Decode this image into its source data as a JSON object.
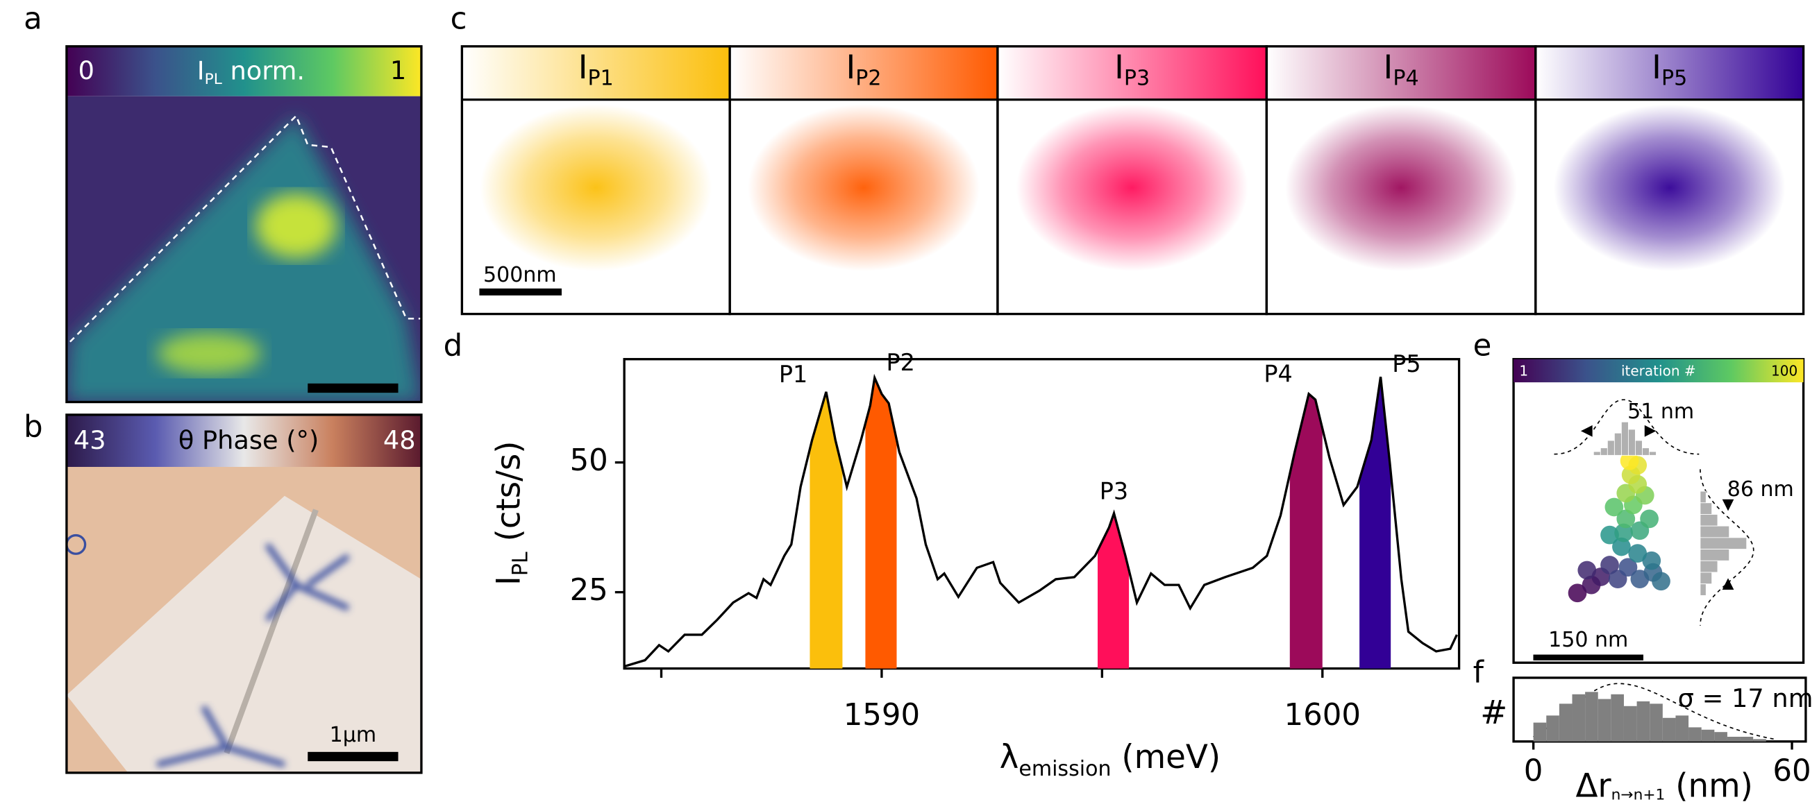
{
  "panel_letters": [
    "a",
    "b",
    "c",
    "d",
    "e",
    "f"
  ],
  "pl_map": {
    "colorbar_min": "0",
    "label": {
      "main": "I",
      "sub": "PL",
      "rest": " norm."
    },
    "colorbar_max": "1"
  },
  "phase_map": {
    "colorbar_min": "43",
    "label": "θ Phase (°)",
    "colorbar_max": "48",
    "scale_bar": "1μm"
  },
  "peak_maps": {
    "symbol": "I",
    "scale_bar": "500nm"
  },
  "chart_data": [
    {
      "type": "line",
      "y_label": {
        "main": "I",
        "sub": "PL",
        "rest": " (cts/s)"
      },
      "x_label": {
        "main": "λ",
        "sub": "emission",
        "rest": " (meV)"
      },
      "x": [
        1584.16,
        1584.63,
        1584.95,
        1585.16,
        1585.53,
        1585.92,
        1586.27,
        1586.63,
        1586.98,
        1587.16,
        1587.32,
        1587.48,
        1587.79,
        1587.95,
        1588.16,
        1588.42,
        1588.74,
        1588.95,
        1589.21,
        1589.53,
        1589.74,
        1589.84,
        1590.0,
        1590.16,
        1590.4,
        1590.79,
        1591.0,
        1591.27,
        1591.42,
        1591.74,
        1592.16,
        1592.53,
        1592.69,
        1593.11,
        1593.58,
        1593.95,
        1594.37,
        1594.84,
        1595.16,
        1595.27,
        1595.53,
        1595.79,
        1596.11,
        1596.42,
        1596.74,
        1597.0,
        1597.32,
        1597.79,
        1598.42,
        1598.74,
        1599.05,
        1599.37,
        1599.69,
        1599.84,
        1600.16,
        1600.48,
        1600.79,
        1601.11,
        1601.32,
        1601.53,
        1601.79,
        1601.95,
        1602.27,
        1602.58,
        1602.9,
        1603.05
      ],
      "values": [
        10.7,
        11.9,
        14.8,
        13.6,
        16.8,
        16.8,
        19.7,
        23.0,
        24.8,
        23.9,
        27.5,
        26.4,
        32.0,
        34.2,
        45.3,
        54.3,
        63.6,
        54.3,
        45.3,
        54.3,
        61.0,
        66.3,
        63.2,
        61.4,
        52.0,
        43.1,
        34.2,
        27.5,
        28.6,
        24.1,
        29.7,
        30.8,
        26.8,
        23.0,
        25.3,
        27.5,
        27.9,
        32.0,
        37.5,
        40.2,
        32.0,
        23.0,
        28.6,
        26.4,
        26.4,
        21.9,
        26.4,
        27.9,
        29.7,
        32.0,
        39.8,
        52.0,
        63.2,
        62.1,
        50.9,
        41.8,
        45.3,
        54.3,
        66.5,
        49.8,
        27.5,
        17.4,
        15.2,
        13.6,
        14.1,
        16.8
      ],
      "color": "#000000",
      "xlim": [
        1584.16,
        1603.1
      ],
      "ylim": [
        10.3,
        69.9
      ],
      "xticks": [
        1590,
        1600
      ],
      "minor_xticks": [
        1585,
        1595
      ],
      "yticks": [
        25,
        50
      ],
      "peaks": [
        {
          "name": "P1",
          "range": [
            1588.37,
            1589.11
          ],
          "color": "#fbbf0c"
        },
        {
          "name": "P2",
          "range": [
            1589.63,
            1590.34
          ],
          "color": "#ff5a00"
        },
        {
          "name": "P3",
          "range": [
            1594.9,
            1595.61
          ],
          "color": "#ff0f5a"
        },
        {
          "name": "P4",
          "range": [
            1599.26,
            1600.0
          ],
          "color": "#9c0a5a"
        },
        {
          "name": "P5",
          "range": [
            1600.84,
            1601.55
          ],
          "color": "#320096"
        }
      ]
    },
    {
      "type": "scatter",
      "colorbar": {
        "min": "1",
        "label": "iteration #",
        "max": "100"
      },
      "colormap": "viridis",
      "x": [
        87,
        106,
        119,
        100,
        131,
        142,
        156,
        172,
        190,
        201,
        188,
        169,
        147,
        131,
        150,
        172,
        185,
        153,
        137,
        163,
        179,
        153,
        169,
        160,
        169,
        158
      ],
      "values": [
        95,
        106,
        117,
        126,
        133,
        114,
        130,
        114,
        123,
        111,
        139,
        149,
        158,
        174,
        177,
        180,
        196,
        196,
        212,
        215,
        228,
        231,
        243,
        256,
        269,
        275
      ],
      "xlim": [
        0,
        395
      ],
      "ylim": [
        0,
        382
      ],
      "scale_bar": {
        "length": 150,
        "label": "150 nm"
      },
      "x_histogram": {
        "counts": [
          1,
          2,
          4,
          6,
          9,
          7,
          4,
          2,
          1
        ],
        "label": "51 nm"
      },
      "y_histogram": {
        "counts": [
          1,
          2,
          3,
          5,
          8,
          5,
          3,
          2,
          1
        ],
        "label": "86 nm"
      }
    },
    {
      "type": "histogram",
      "x_label": {
        "main": "Δr",
        "sub": "n→n+1",
        "rest": " (nm)"
      },
      "y_label": "#",
      "bins": [
        0,
        3,
        6,
        9,
        12,
        15,
        18,
        21,
        24,
        27,
        30,
        33,
        36,
        39,
        42,
        45,
        48,
        51,
        54
      ],
      "counts": [
        8,
        11,
        16,
        20,
        21,
        18,
        20,
        15,
        17,
        16,
        10,
        11,
        6,
        5,
        4,
        2,
        2,
        1
      ],
      "xlim": [
        -4.6,
        63.2
      ],
      "ylim": [
        0,
        27
      ],
      "xticks": [
        0,
        60
      ],
      "annotation": "σ = 17 nm",
      "color": "#808080"
    }
  ]
}
